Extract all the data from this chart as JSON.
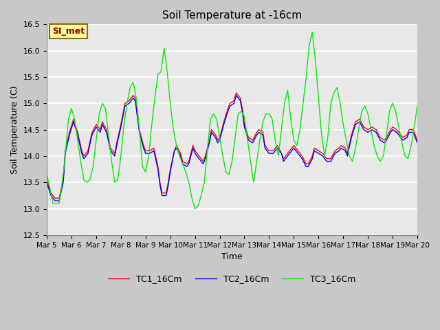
{
  "title": "Soil Temperature at -16cm",
  "xlabel": "Time",
  "ylabel": "Soil Temperature (C)",
  "ylim": [
    12.5,
    16.5
  ],
  "xlim": [
    0,
    360
  ],
  "annotation_text": "SI_met",
  "annotation_color": "#8B0000",
  "annotation_bg": "#ffff99",
  "annotation_edge": "#8B6914",
  "legend_entries": [
    "TC1_16Cm",
    "TC2_16Cm",
    "TC3_16Cm"
  ],
  "legend_colors": [
    "red",
    "blue",
    "#00ee00"
  ],
  "xtick_labels": [
    "Mar 5",
    "Mar 6",
    "Mar 7",
    "Mar 8",
    "Mar 9",
    "Mar 10",
    "Mar 11",
    "Mar 12",
    "Mar 13",
    "Mar 14",
    "Mar 15",
    "Mar 16",
    "Mar 17",
    "Mar 18",
    "Mar 19",
    "Mar 20"
  ],
  "xtick_positions": [
    0,
    24,
    48,
    72,
    96,
    120,
    144,
    168,
    192,
    216,
    240,
    264,
    288,
    312,
    336,
    360
  ],
  "TC1_x": [
    0,
    4,
    8,
    12,
    16,
    18,
    22,
    26,
    30,
    34,
    36,
    40,
    44,
    48,
    52,
    54,
    58,
    62,
    66,
    68,
    72,
    76,
    80,
    84,
    86,
    90,
    94,
    96,
    100,
    104,
    108,
    110,
    112,
    116,
    118,
    120,
    124,
    126,
    130,
    132,
    136,
    138,
    142,
    144,
    148,
    152,
    154,
    158,
    160,
    164,
    166,
    168,
    172,
    176,
    178,
    182,
    184,
    188,
    190,
    192,
    196,
    200,
    204,
    206,
    210,
    212,
    216,
    220,
    224,
    228,
    230,
    234,
    236,
    240,
    244,
    248,
    252,
    254,
    258,
    260,
    264,
    268,
    272,
    276,
    280,
    284,
    286,
    290,
    292,
    296,
    300,
    304,
    308,
    312,
    316,
    320,
    324,
    328,
    330,
    334,
    336,
    340,
    344,
    346,
    350,
    352,
    356,
    360
  ],
  "TC1_y": [
    13.55,
    13.3,
    13.2,
    13.2,
    13.55,
    14.1,
    14.45,
    14.7,
    14.45,
    14.1,
    14.0,
    14.1,
    14.45,
    14.6,
    14.5,
    14.65,
    14.5,
    14.15,
    14.05,
    14.25,
    14.6,
    15.0,
    15.05,
    15.15,
    15.1,
    14.5,
    14.2,
    14.1,
    14.1,
    14.15,
    13.8,
    13.5,
    13.3,
    13.3,
    13.5,
    13.75,
    14.1,
    14.2,
    14.05,
    13.9,
    13.85,
    13.9,
    14.2,
    14.1,
    14.0,
    13.9,
    14.0,
    14.3,
    14.5,
    14.4,
    14.3,
    14.35,
    14.65,
    14.9,
    15.0,
    15.05,
    15.2,
    15.1,
    14.9,
    14.6,
    14.35,
    14.3,
    14.45,
    14.5,
    14.45,
    14.2,
    14.1,
    14.1,
    14.2,
    14.05,
    13.95,
    14.05,
    14.1,
    14.2,
    14.1,
    14.0,
    13.85,
    13.85,
    14.0,
    14.15,
    14.1,
    14.05,
    13.95,
    13.95,
    14.1,
    14.15,
    14.2,
    14.15,
    14.05,
    14.4,
    14.65,
    14.7,
    14.55,
    14.5,
    14.55,
    14.5,
    14.35,
    14.3,
    14.35,
    14.5,
    14.55,
    14.5,
    14.4,
    14.35,
    14.4,
    14.5,
    14.5,
    14.3
  ],
  "TC2_x": [
    0,
    4,
    8,
    12,
    16,
    18,
    22,
    26,
    30,
    34,
    36,
    40,
    44,
    48,
    52,
    54,
    58,
    62,
    66,
    68,
    72,
    76,
    80,
    84,
    86,
    90,
    94,
    96,
    100,
    104,
    108,
    110,
    112,
    116,
    118,
    120,
    124,
    126,
    130,
    132,
    136,
    138,
    142,
    144,
    148,
    152,
    154,
    158,
    160,
    164,
    166,
    168,
    172,
    176,
    178,
    182,
    184,
    188,
    190,
    192,
    196,
    200,
    204,
    206,
    210,
    212,
    216,
    220,
    224,
    228,
    230,
    234,
    236,
    240,
    244,
    248,
    252,
    254,
    258,
    260,
    264,
    268,
    272,
    276,
    280,
    284,
    286,
    290,
    292,
    296,
    300,
    304,
    308,
    312,
    316,
    320,
    324,
    328,
    330,
    334,
    336,
    340,
    344,
    346,
    350,
    352,
    356,
    360
  ],
  "TC2_y": [
    13.5,
    13.25,
    13.15,
    13.15,
    13.5,
    14.05,
    14.4,
    14.65,
    14.4,
    14.05,
    13.95,
    14.05,
    14.4,
    14.55,
    14.45,
    14.6,
    14.45,
    14.1,
    14.0,
    14.2,
    14.55,
    14.95,
    15.0,
    15.1,
    15.05,
    14.45,
    14.15,
    14.05,
    14.05,
    14.1,
    13.75,
    13.45,
    13.25,
    13.25,
    13.45,
    13.7,
    14.1,
    14.15,
    14.0,
    13.85,
    13.8,
    13.85,
    14.15,
    14.05,
    13.95,
    13.85,
    13.95,
    14.25,
    14.45,
    14.35,
    14.25,
    14.3,
    14.6,
    14.85,
    14.95,
    15.0,
    15.15,
    15.05,
    14.85,
    14.55,
    14.3,
    14.25,
    14.4,
    14.45,
    14.4,
    14.15,
    14.05,
    14.05,
    14.15,
    14.05,
    13.9,
    14.0,
    14.05,
    14.15,
    14.05,
    13.95,
    13.8,
    13.8,
    13.95,
    14.1,
    14.05,
    14.0,
    13.9,
    13.9,
    14.05,
    14.1,
    14.15,
    14.1,
    14.0,
    14.35,
    14.6,
    14.65,
    14.5,
    14.45,
    14.5,
    14.45,
    14.3,
    14.25,
    14.3,
    14.45,
    14.5,
    14.45,
    14.35,
    14.3,
    14.35,
    14.45,
    14.45,
    14.25
  ],
  "TC3_x": [
    0,
    3,
    6,
    9,
    12,
    15,
    18,
    21,
    24,
    27,
    30,
    33,
    36,
    39,
    42,
    45,
    48,
    51,
    54,
    57,
    60,
    63,
    66,
    69,
    72,
    75,
    78,
    81,
    84,
    87,
    90,
    93,
    96,
    99,
    102,
    105,
    108,
    111,
    114,
    117,
    120,
    123,
    126,
    129,
    132,
    135,
    138,
    141,
    144,
    147,
    150,
    153,
    156,
    159,
    162,
    165,
    168,
    171,
    174,
    177,
    180,
    183,
    186,
    189,
    192,
    195,
    198,
    201,
    204,
    207,
    210,
    213,
    216,
    219,
    222,
    225,
    228,
    231,
    234,
    237,
    240,
    243,
    246,
    249,
    252,
    255,
    258,
    261,
    264,
    267,
    270,
    273,
    276,
    279,
    282,
    285,
    288,
    291,
    294,
    297,
    300,
    303,
    306,
    309,
    312,
    315,
    318,
    321,
    324,
    327,
    330,
    333,
    336,
    339,
    342,
    345,
    348,
    351,
    354,
    357,
    360
  ],
  "TC3_y": [
    13.65,
    13.4,
    13.1,
    13.1,
    13.1,
    13.5,
    14.0,
    14.7,
    14.9,
    14.7,
    14.3,
    13.9,
    13.55,
    13.5,
    13.55,
    13.8,
    14.3,
    14.8,
    15.0,
    14.9,
    14.4,
    13.9,
    13.5,
    13.55,
    14.0,
    14.6,
    15.0,
    15.3,
    15.4,
    15.1,
    14.5,
    13.8,
    13.7,
    14.0,
    14.6,
    15.1,
    15.55,
    15.6,
    16.05,
    15.6,
    15.0,
    14.5,
    14.2,
    14.0,
    13.85,
    13.7,
    13.5,
    13.2,
    13.0,
    13.05,
    13.25,
    13.5,
    14.1,
    14.7,
    14.8,
    14.7,
    14.35,
    14.0,
    13.7,
    13.65,
    13.9,
    14.35,
    14.8,
    14.85,
    14.75,
    14.3,
    13.9,
    13.5,
    13.9,
    14.3,
    14.65,
    14.8,
    14.8,
    14.7,
    14.3,
    14.0,
    14.5,
    15.0,
    15.25,
    14.7,
    14.3,
    14.2,
    14.5,
    15.0,
    15.5,
    16.1,
    16.35,
    15.8,
    15.1,
    14.4,
    14.0,
    14.35,
    15.0,
    15.2,
    15.3,
    15.0,
    14.6,
    14.3,
    14.0,
    13.9,
    14.15,
    14.5,
    14.85,
    14.95,
    14.8,
    14.5,
    14.2,
    14.0,
    13.9,
    14.0,
    14.4,
    14.85,
    15.0,
    14.85,
    14.55,
    14.25,
    14.0,
    13.95,
    14.2,
    14.55,
    14.95
  ]
}
